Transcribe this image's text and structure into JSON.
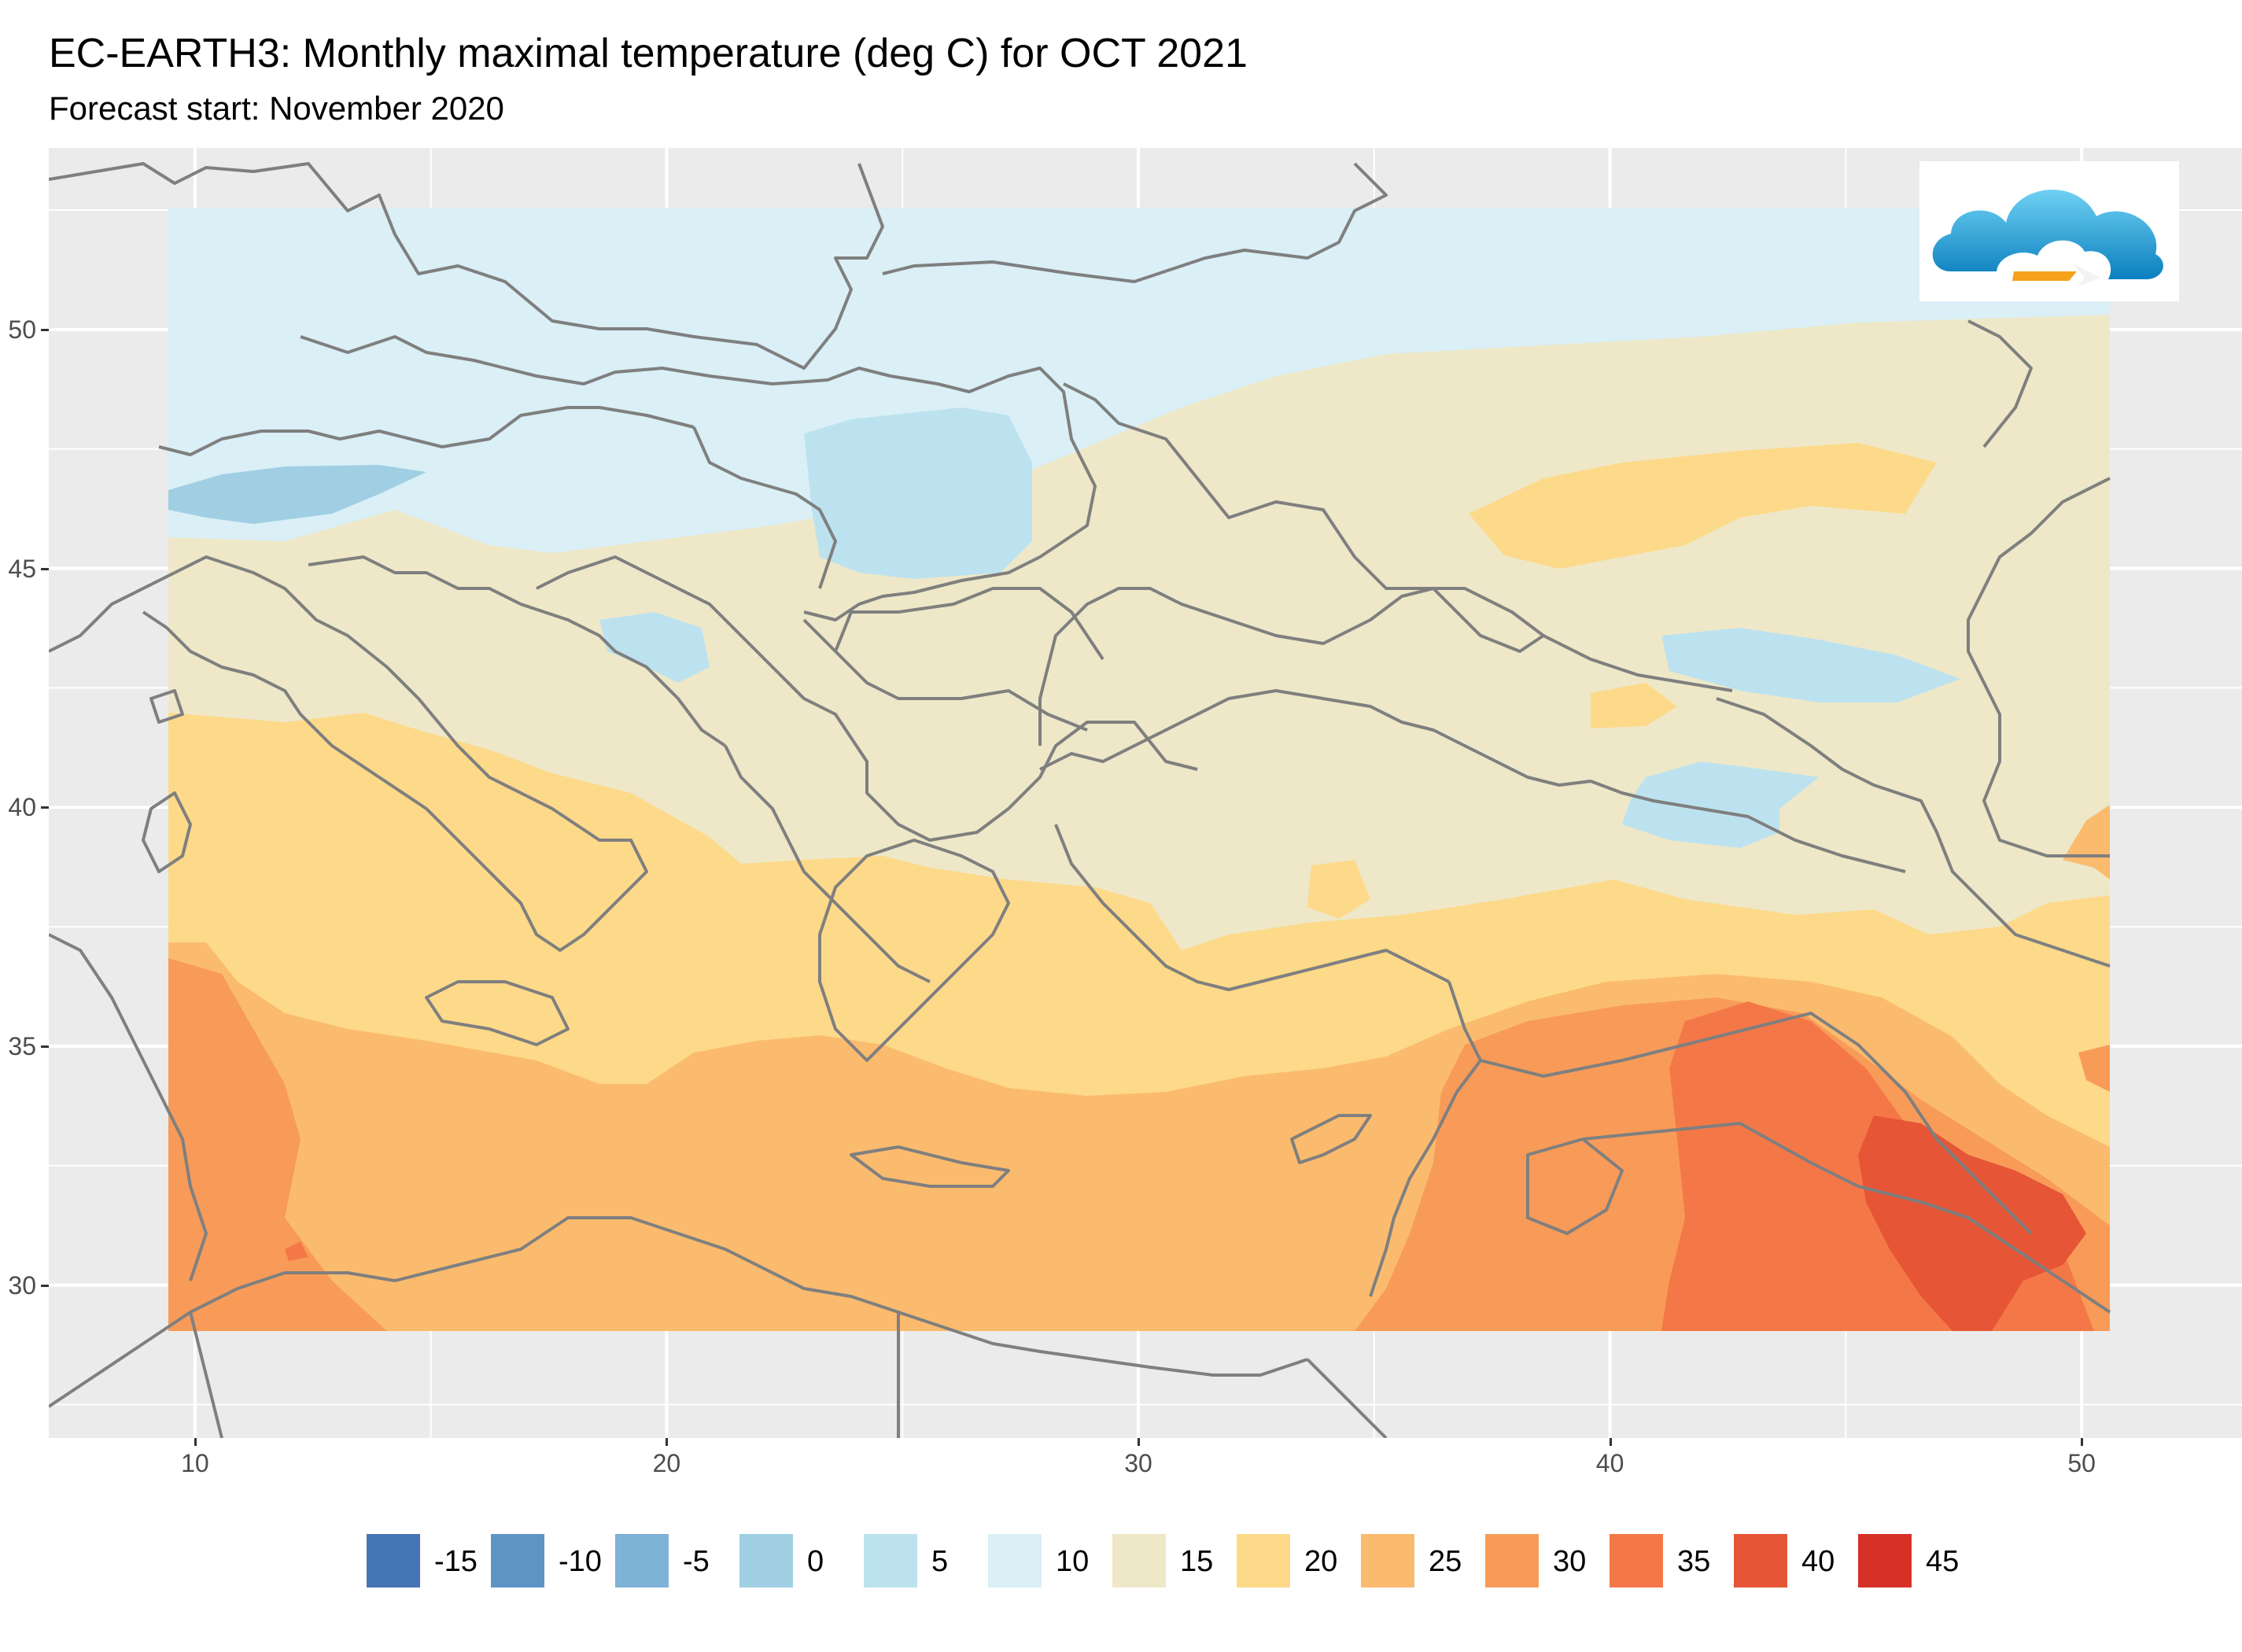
{
  "title": "EC-EARTH3: Monthly maximal temperature (deg C) for OCT 2021",
  "subtitle": "Forecast start: November 2020",
  "x_axis": {
    "ticks": [
      "10",
      "20",
      "30",
      "40",
      "50"
    ],
    "values": [
      10,
      20,
      30,
      40,
      50
    ],
    "range": [
      6.9,
      53.4
    ]
  },
  "y_axis": {
    "ticks": [
      "30",
      "35",
      "40",
      "45",
      "50"
    ],
    "values": [
      30,
      35,
      40,
      45,
      50
    ],
    "range": [
      26.8,
      53.8
    ]
  },
  "legend": {
    "items": [
      {
        "label": "-15",
        "color": "#4575b4"
      },
      {
        "label": "-10",
        "color": "#5e94c5"
      },
      {
        "label": "-5",
        "color": "#7eb2d6"
      },
      {
        "label": "0",
        "color": "#a0cfe4"
      },
      {
        "label": "5",
        "color": "#bde2ef"
      },
      {
        "label": "10",
        "color": "#daeff6"
      },
      {
        "label": "15",
        "color": "#eee8c8"
      },
      {
        "label": "20",
        "color": "#fdd98a"
      },
      {
        "label": "25",
        "color": "#fbbb6e"
      },
      {
        "label": "30",
        "color": "#f89b58"
      },
      {
        "label": "35",
        "color": "#f47847"
      },
      {
        "label": "40",
        "color": "#e55536"
      },
      {
        "label": "45",
        "color": "#d73027"
      }
    ]
  },
  "logo": {
    "icon": "cloud-logo-icon"
  },
  "colors": {
    "panel": "#ebebeb",
    "grid": "#ffffff",
    "border": "#7f7f7f"
  }
}
